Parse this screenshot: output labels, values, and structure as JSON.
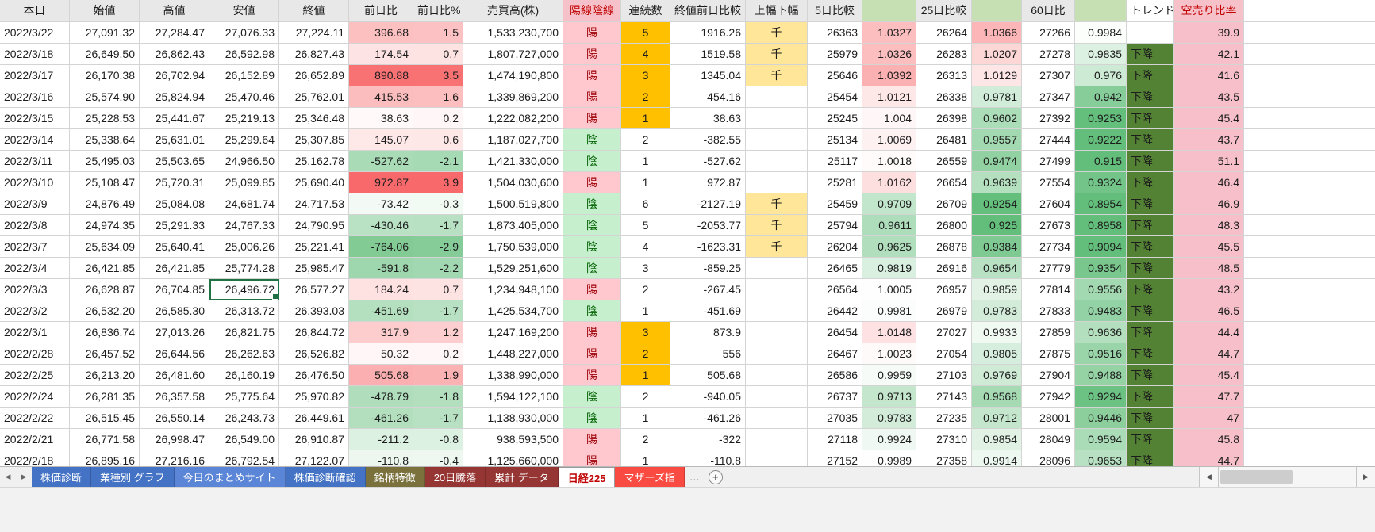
{
  "sheet": {
    "header_labels": [
      "本日",
      "始値",
      "高値",
      "安値",
      "終値",
      "前日比",
      "前日比%",
      "売買高(株)",
      "陽線陰線",
      "連続数",
      "終値前日比較",
      "上幅下幅",
      "5日比較",
      "",
      "25日比較",
      "",
      "60日比",
      "",
      "トレンド",
      "空売り比率"
    ],
    "selected_cell": {
      "row_index": 12,
      "column": "low"
    },
    "rows": [
      {
        "date": "2022/3/22",
        "open": "27,091.32",
        "high": "27,284.47",
        "low": "27,076.33",
        "close": "27,224.11",
        "change": "396.68",
        "change_pct": "1.5",
        "volume": "1,533,230,700",
        "candle": "陽",
        "streak": "5",
        "streak_highlight": true,
        "close_cmp": "1916.26",
        "width_flag": "千",
        "d5": "26363",
        "d5_ratio": "1.0327",
        "d25": "26264",
        "d25_ratio": "1.0366",
        "d60": "27266",
        "d60_ratio": "0.9984",
        "trend": "",
        "short_ratio": "39.9"
      },
      {
        "date": "2022/3/18",
        "open": "26,649.50",
        "high": "26,862.43",
        "low": "26,592.98",
        "close": "26,827.43",
        "change": "174.54",
        "change_pct": "0.7",
        "volume": "1,807,727,000",
        "candle": "陽",
        "streak": "4",
        "streak_highlight": true,
        "close_cmp": "1519.58",
        "width_flag": "千",
        "d5": "25979",
        "d5_ratio": "1.0326",
        "d25": "26283",
        "d25_ratio": "1.0207",
        "d60": "27278",
        "d60_ratio": "0.9835",
        "trend": "下降",
        "short_ratio": "42.1"
      },
      {
        "date": "2022/3/17",
        "open": "26,170.38",
        "high": "26,702.94",
        "low": "26,152.89",
        "close": "26,652.89",
        "change": "890.88",
        "change_pct": "3.5",
        "volume": "1,474,190,800",
        "candle": "陽",
        "streak": "3",
        "streak_highlight": true,
        "close_cmp": "1345.04",
        "width_flag": "千",
        "d5": "25646",
        "d5_ratio": "1.0392",
        "d25": "26313",
        "d25_ratio": "1.0129",
        "d60": "27307",
        "d60_ratio": "0.976",
        "trend": "下降",
        "short_ratio": "41.6"
      },
      {
        "date": "2022/3/16",
        "open": "25,574.90",
        "high": "25,824.94",
        "low": "25,470.46",
        "close": "25,762.01",
        "change": "415.53",
        "change_pct": "1.6",
        "volume": "1,339,869,200",
        "candle": "陽",
        "streak": "2",
        "streak_highlight": true,
        "close_cmp": "454.16",
        "width_flag": "",
        "d5": "25454",
        "d5_ratio": "1.0121",
        "d25": "26338",
        "d25_ratio": "0.9781",
        "d60": "27347",
        "d60_ratio": "0.942",
        "trend": "下降",
        "short_ratio": "43.5"
      },
      {
        "date": "2022/3/15",
        "open": "25,228.53",
        "high": "25,441.67",
        "low": "25,219.13",
        "close": "25,346.48",
        "change": "38.63",
        "change_pct": "0.2",
        "volume": "1,222,082,200",
        "candle": "陽",
        "streak": "1",
        "streak_highlight": true,
        "close_cmp": "38.63",
        "width_flag": "",
        "d5": "25245",
        "d5_ratio": "1.004",
        "d25": "26398",
        "d25_ratio": "0.9602",
        "d60": "27392",
        "d60_ratio": "0.9253",
        "trend": "下降",
        "short_ratio": "45.4"
      },
      {
        "date": "2022/3/14",
        "open": "25,338.64",
        "high": "25,631.01",
        "low": "25,299.64",
        "close": "25,307.85",
        "change": "145.07",
        "change_pct": "0.6",
        "volume": "1,187,027,700",
        "candle": "陰",
        "streak": "2",
        "streak_highlight": false,
        "close_cmp": "-382.55",
        "width_flag": "",
        "d5": "25134",
        "d5_ratio": "1.0069",
        "d25": "26481",
        "d25_ratio": "0.9557",
        "d60": "27444",
        "d60_ratio": "0.9222",
        "trend": "下降",
        "short_ratio": "43.7"
      },
      {
        "date": "2022/3/11",
        "open": "25,495.03",
        "high": "25,503.65",
        "low": "24,966.50",
        "close": "25,162.78",
        "change": "-527.62",
        "change_pct": "-2.1",
        "volume": "1,421,330,000",
        "candle": "陰",
        "streak": "1",
        "streak_highlight": false,
        "close_cmp": "-527.62",
        "width_flag": "",
        "d5": "25117",
        "d5_ratio": "1.0018",
        "d25": "26559",
        "d25_ratio": "0.9474",
        "d60": "27499",
        "d60_ratio": "0.915",
        "trend": "下降",
        "short_ratio": "51.1"
      },
      {
        "date": "2022/3/10",
        "open": "25,108.47",
        "high": "25,720.31",
        "low": "25,099.85",
        "close": "25,690.40",
        "change": "972.87",
        "change_pct": "3.9",
        "volume": "1,504,030,600",
        "candle": "陽",
        "streak": "1",
        "streak_highlight": false,
        "close_cmp": "972.87",
        "width_flag": "",
        "d5": "25281",
        "d5_ratio": "1.0162",
        "d25": "26654",
        "d25_ratio": "0.9639",
        "d60": "27554",
        "d60_ratio": "0.9324",
        "trend": "下降",
        "short_ratio": "46.4"
      },
      {
        "date": "2022/3/9",
        "open": "24,876.49",
        "high": "25,084.08",
        "low": "24,681.74",
        "close": "24,717.53",
        "change": "-73.42",
        "change_pct": "-0.3",
        "volume": "1,500,519,800",
        "candle": "陰",
        "streak": "6",
        "streak_highlight": false,
        "close_cmp": "-2127.19",
        "width_flag": "千",
        "d5": "25459",
        "d5_ratio": "0.9709",
        "d25": "26709",
        "d25_ratio": "0.9254",
        "d60": "27604",
        "d60_ratio": "0.8954",
        "trend": "下降",
        "short_ratio": "46.9"
      },
      {
        "date": "2022/3/8",
        "open": "24,974.35",
        "high": "25,291.33",
        "low": "24,767.33",
        "close": "24,790.95",
        "change": "-430.46",
        "change_pct": "-1.7",
        "volume": "1,873,405,000",
        "candle": "陰",
        "streak": "5",
        "streak_highlight": false,
        "close_cmp": "-2053.77",
        "width_flag": "千",
        "d5": "25794",
        "d5_ratio": "0.9611",
        "d25": "26800",
        "d25_ratio": "0.925",
        "d60": "27673",
        "d60_ratio": "0.8958",
        "trend": "下降",
        "short_ratio": "48.3"
      },
      {
        "date": "2022/3/7",
        "open": "25,634.09",
        "high": "25,640.41",
        "low": "25,006.26",
        "close": "25,221.41",
        "change": "-764.06",
        "change_pct": "-2.9",
        "volume": "1,750,539,000",
        "candle": "陰",
        "streak": "4",
        "streak_highlight": false,
        "close_cmp": "-1623.31",
        "width_flag": "千",
        "d5": "26204",
        "d5_ratio": "0.9625",
        "d25": "26878",
        "d25_ratio": "0.9384",
        "d60": "27734",
        "d60_ratio": "0.9094",
        "trend": "下降",
        "short_ratio": "45.5"
      },
      {
        "date": "2022/3/4",
        "open": "26,421.85",
        "high": "26,421.85",
        "low": "25,774.28",
        "close": "25,985.47",
        "change": "-591.8",
        "change_pct": "-2.2",
        "volume": "1,529,251,600",
        "candle": "陰",
        "streak": "3",
        "streak_highlight": false,
        "close_cmp": "-859.25",
        "width_flag": "",
        "d5": "26465",
        "d5_ratio": "0.9819",
        "d25": "26916",
        "d25_ratio": "0.9654",
        "d60": "27779",
        "d60_ratio": "0.9354",
        "trend": "下降",
        "short_ratio": "48.5"
      },
      {
        "date": "2022/3/3",
        "open": "26,628.87",
        "high": "26,704.85",
        "low": "26,496.72",
        "close": "26,577.27",
        "change": "184.24",
        "change_pct": "0.7",
        "volume": "1,234,948,100",
        "candle": "陽",
        "streak": "2",
        "streak_highlight": false,
        "close_cmp": "-267.45",
        "width_flag": "",
        "d5": "26564",
        "d5_ratio": "1.0005",
        "d25": "26957",
        "d25_ratio": "0.9859",
        "d60": "27814",
        "d60_ratio": "0.9556",
        "trend": "下降",
        "short_ratio": "43.2"
      },
      {
        "date": "2022/3/2",
        "open": "26,532.20",
        "high": "26,585.30",
        "low": "26,313.72",
        "close": "26,393.03",
        "change": "-451.69",
        "change_pct": "-1.7",
        "volume": "1,425,534,700",
        "candle": "陰",
        "streak": "1",
        "streak_highlight": false,
        "close_cmp": "-451.69",
        "width_flag": "",
        "d5": "26442",
        "d5_ratio": "0.9981",
        "d25": "26979",
        "d25_ratio": "0.9783",
        "d60": "27833",
        "d60_ratio": "0.9483",
        "trend": "下降",
        "short_ratio": "46.5"
      },
      {
        "date": "2022/3/1",
        "open": "26,836.74",
        "high": "27,013.26",
        "low": "26,821.75",
        "close": "26,844.72",
        "change": "317.9",
        "change_pct": "1.2",
        "volume": "1,247,169,200",
        "candle": "陽",
        "streak": "3",
        "streak_highlight": true,
        "close_cmp": "873.9",
        "width_flag": "",
        "d5": "26454",
        "d5_ratio": "1.0148",
        "d25": "27027",
        "d25_ratio": "0.9933",
        "d60": "27859",
        "d60_ratio": "0.9636",
        "trend": "下降",
        "short_ratio": "44.4"
      },
      {
        "date": "2022/2/28",
        "open": "26,457.52",
        "high": "26,644.56",
        "low": "26,262.63",
        "close": "26,526.82",
        "change": "50.32",
        "change_pct": "0.2",
        "volume": "1,448,227,000",
        "candle": "陽",
        "streak": "2",
        "streak_highlight": true,
        "close_cmp": "556",
        "width_flag": "",
        "d5": "26467",
        "d5_ratio": "1.0023",
        "d25": "27054",
        "d25_ratio": "0.9805",
        "d60": "27875",
        "d60_ratio": "0.9516",
        "trend": "下降",
        "short_ratio": "44.7"
      },
      {
        "date": "2022/2/25",
        "open": "26,213.20",
        "high": "26,481.60",
        "low": "26,160.19",
        "close": "26,476.50",
        "change": "505.68",
        "change_pct": "1.9",
        "volume": "1,338,990,000",
        "candle": "陽",
        "streak": "1",
        "streak_highlight": true,
        "close_cmp": "505.68",
        "width_flag": "",
        "d5": "26586",
        "d5_ratio": "0.9959",
        "d25": "27103",
        "d25_ratio": "0.9769",
        "d60": "27904",
        "d60_ratio": "0.9488",
        "trend": "下降",
        "short_ratio": "45.4"
      },
      {
        "date": "2022/2/24",
        "open": "26,281.35",
        "high": "26,357.58",
        "low": "25,775.64",
        "close": "25,970.82",
        "change": "-478.79",
        "change_pct": "-1.8",
        "volume": "1,594,122,100",
        "candle": "陰",
        "streak": "2",
        "streak_highlight": false,
        "close_cmp": "-940.05",
        "width_flag": "",
        "d5": "26737",
        "d5_ratio": "0.9713",
        "d25": "27143",
        "d25_ratio": "0.9568",
        "d60": "27942",
        "d60_ratio": "0.9294",
        "trend": "下降",
        "short_ratio": "47.7"
      },
      {
        "date": "2022/2/22",
        "open": "26,515.45",
        "high": "26,550.14",
        "low": "26,243.73",
        "close": "26,449.61",
        "change": "-461.26",
        "change_pct": "-1.7",
        "volume": "1,138,930,000",
        "candle": "陰",
        "streak": "1",
        "streak_highlight": false,
        "close_cmp": "-461.26",
        "width_flag": "",
        "d5": "27035",
        "d5_ratio": "0.9783",
        "d25": "27235",
        "d25_ratio": "0.9712",
        "d60": "28001",
        "d60_ratio": "0.9446",
        "trend": "下降",
        "short_ratio": "47"
      },
      {
        "date": "2022/2/21",
        "open": "26,771.58",
        "high": "26,998.47",
        "low": "26,549.00",
        "close": "26,910.87",
        "change": "-211.2",
        "change_pct": "-0.8",
        "volume": "938,593,500",
        "candle": "陽",
        "streak": "2",
        "streak_highlight": false,
        "close_cmp": "-322",
        "width_flag": "",
        "d5": "27118",
        "d5_ratio": "0.9924",
        "d25": "27310",
        "d25_ratio": "0.9854",
        "d60": "28049",
        "d60_ratio": "0.9594",
        "trend": "下降",
        "short_ratio": "45.8"
      },
      {
        "date": "2022/2/18",
        "open": "26,895.16",
        "high": "27,216.16",
        "low": "26,792.54",
        "close": "27,122.07",
        "change": "-110.8",
        "change_pct": "-0.4",
        "volume": "1,125,660,000",
        "candle": "陽",
        "streak": "1",
        "streak_highlight": false,
        "close_cmp": "-110.8",
        "width_flag": "",
        "d5": "27152",
        "d5_ratio": "0.9989",
        "d25": "27358",
        "d25_ratio": "0.9914",
        "d60": "28096",
        "d60_ratio": "0.9653",
        "trend": "下降",
        "short_ratio": "44.7"
      }
    ]
  },
  "tab_bar": {
    "scroll_left": "◀",
    "scroll_right": "▶",
    "overflow_label": "…",
    "add_button_label": "+",
    "tabs": [
      {
        "label": "株価診断",
        "bg": "#4472c4",
        "fg": "#ffffff",
        "active": false
      },
      {
        "label": "業種別 グラフ",
        "bg": "#4472c4",
        "fg": "#ffffff",
        "active": false
      },
      {
        "label": "今日のまとめサイト",
        "bg": "#5b85d6",
        "fg": "#ffffff",
        "active": false
      },
      {
        "label": "株価診断確認",
        "bg": "#4472c4",
        "fg": "#ffffff",
        "active": false
      },
      {
        "label": "銘柄特徴",
        "bg": "#7a713d",
        "fg": "#ffffff",
        "active": false
      },
      {
        "label": "20日騰落",
        "bg": "#963634",
        "fg": "#ffffff",
        "active": false
      },
      {
        "label": "累計 データ",
        "bg": "#963634",
        "fg": "#ffffff",
        "active": false
      },
      {
        "label": "日経225",
        "bg": "#ffffff",
        "fg": "#c00000",
        "active": true
      },
      {
        "label": "マザーズ指",
        "bg": "#fa4b42",
        "fg": "#ffffff",
        "active": false
      }
    ]
  },
  "colors": {
    "positive_scale": "#f8696b",
    "negative_scale": "#63be7b",
    "candle_bull_bg": "#ffc7ce",
    "candle_bull_text": "#9c0006",
    "candle_bear_bg": "#c6efce",
    "candle_bear_text": "#006100",
    "streak_highlight": "#ffc000",
    "thousand_flag": "#ffe699",
    "trend_down_bg": "#548235",
    "short_ratio_bg": "#f6bfc9",
    "header_bg": "#e8e8e8",
    "header_green": "#c6e0b4",
    "header_pink_bg": "#f7c1ca",
    "header_pink_text": "#c00000",
    "selection": "#1f7244",
    "gridline": "#d4d4d4"
  }
}
